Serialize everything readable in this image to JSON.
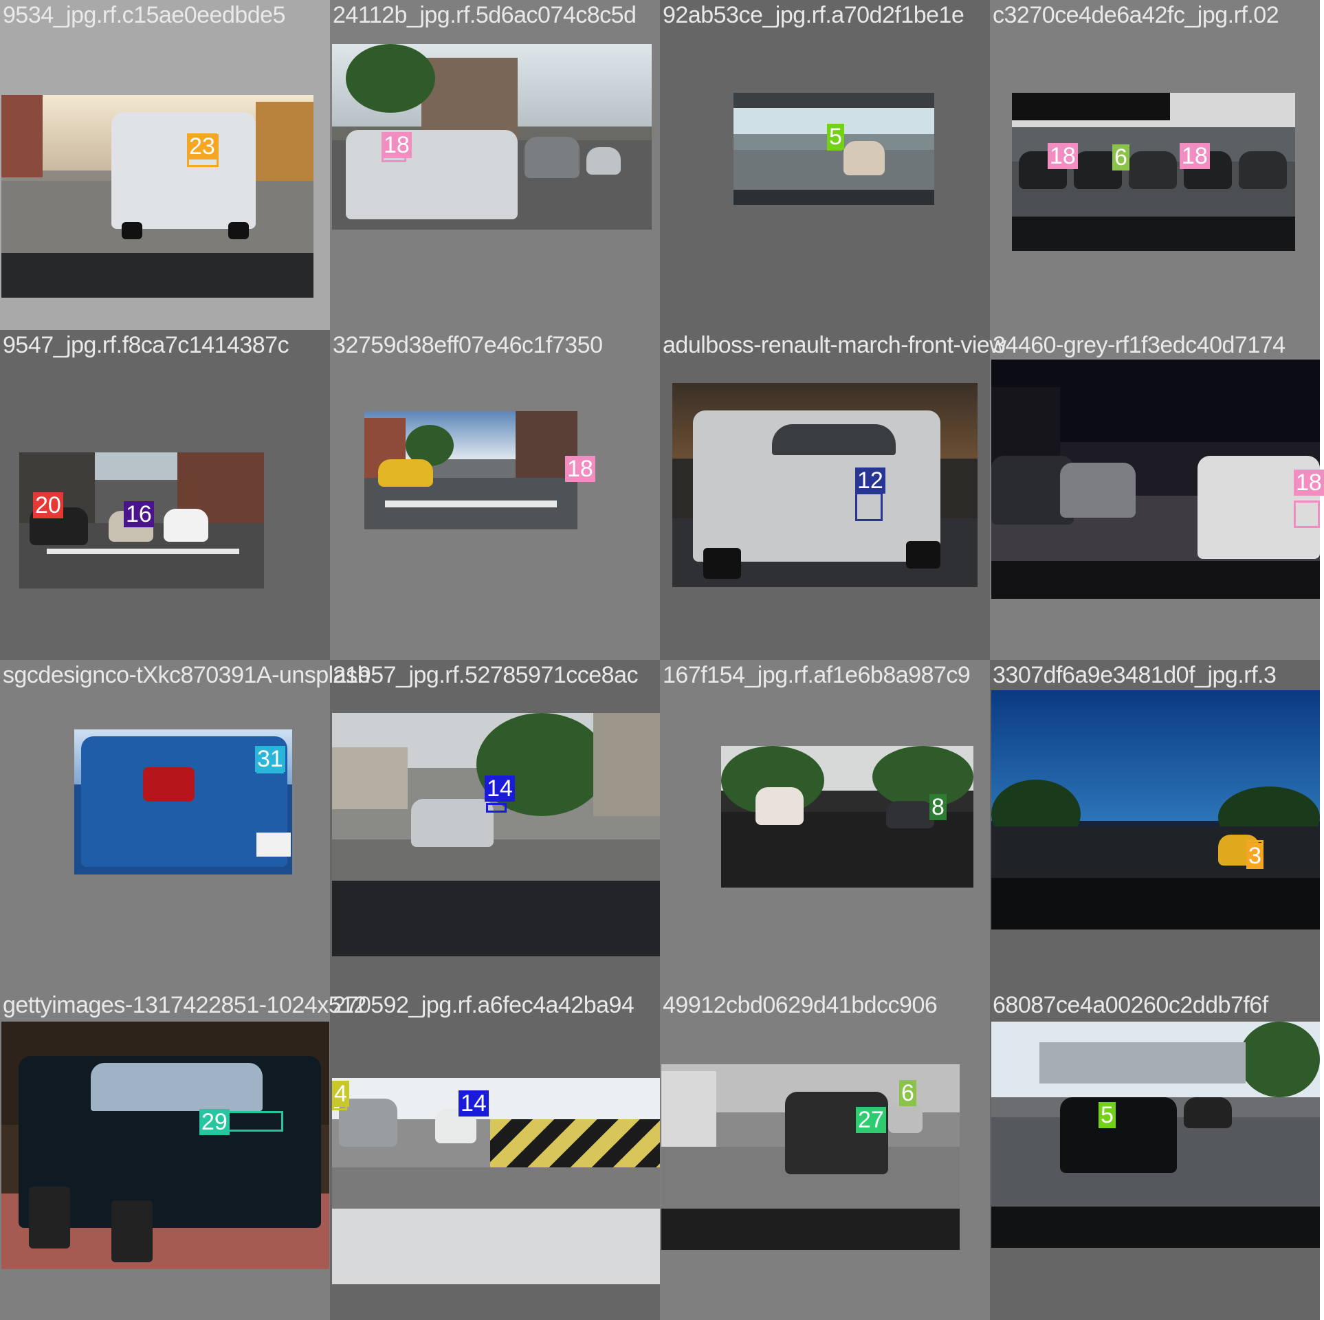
{
  "tiles": [
    {
      "title": "9534_jpg.rf.c15ae0eedbde5",
      "bg": "#a9a9a9",
      "labels": [
        {
          "text": "23",
          "color": "#f5a623"
        }
      ]
    },
    {
      "title": "24112b_jpg.rf.5d6ac074c8c5d",
      "bg": "#7f7f7f",
      "labels": [
        {
          "text": "18",
          "color": "#f28dc2"
        }
      ]
    },
    {
      "title": "92ab53ce_jpg.rf.a70d2f1be1e",
      "bg": "#666666",
      "labels": [
        {
          "text": "5",
          "color": "#73d216"
        }
      ]
    },
    {
      "title": "c3270ce4de6a42fc_jpg.rf.02",
      "bg": "#7f7f7f",
      "labels": [
        {
          "text": "18",
          "color": "#f28dc2"
        },
        {
          "text": "6",
          "color": "#8bc34a"
        },
        {
          "text": "18",
          "color": "#f28dc2"
        }
      ]
    },
    {
      "title": "9547_jpg.rf.f8ca7c1414387c",
      "bg": "#666666",
      "labels": [
        {
          "text": "20",
          "color": "#e53935"
        },
        {
          "text": "16",
          "color": "#4a148c"
        }
      ]
    },
    {
      "title": "32759d38eff07e46c1f7350",
      "bg": "#7f7f7f",
      "labels": [
        {
          "text": "18",
          "color": "#f28dc2"
        }
      ]
    },
    {
      "title": "adulboss-renault-march-front-view",
      "bg": "#666666",
      "labels": [
        {
          "text": "12",
          "color": "#283593"
        }
      ]
    },
    {
      "title": "34460-grey-rf1f3edc40d7174",
      "bg": "#7f7f7f",
      "labels": [
        {
          "text": "18",
          "color": "#f28dc2"
        }
      ]
    },
    {
      "title": "sgcdesignco-tXkc870391A-unsplash",
      "bg": "#7f7f7f",
      "labels": [
        {
          "text": "31",
          "color": "#29b6d8"
        }
      ]
    },
    {
      "title": "21957_jpg.rf.52785971cce8ac",
      "bg": "#666666",
      "labels": [
        {
          "text": "14",
          "color": "#1a1adb"
        }
      ]
    },
    {
      "title": "167f154_jpg.rf.af1e6b8a987c9",
      "bg": "#7f7f7f",
      "labels": [
        {
          "text": "8",
          "color": "#2e7d32"
        }
      ]
    },
    {
      "title": "3307df6a9e3481d0f_jpg.rf.3",
      "bg": "#666666",
      "labels": [
        {
          "text": "3",
          "color": "#f5a623"
        }
      ]
    },
    {
      "title": "gettyimages-1317422851-1024x512",
      "bg": "#7f7f7f",
      "labels": [
        {
          "text": "29",
          "color": "#26c6a0"
        }
      ]
    },
    {
      "title": "270592_jpg.rf.a6fec4a42ba94",
      "bg": "#666666",
      "labels": [
        {
          "text": "4",
          "color": "#c8c82a"
        },
        {
          "text": "14",
          "color": "#1a1adb"
        }
      ]
    },
    {
      "title": "49912cbd0629d41bdcc906",
      "bg": "#7f7f7f",
      "labels": [
        {
          "text": "6",
          "color": "#8bc34a"
        },
        {
          "text": "27",
          "color": "#2ecc71"
        }
      ]
    },
    {
      "title": "68087ce4a00260c2ddb7f6f",
      "bg": "#666666",
      "labels": [
        {
          "text": "5",
          "color": "#73d216"
        }
      ]
    }
  ]
}
